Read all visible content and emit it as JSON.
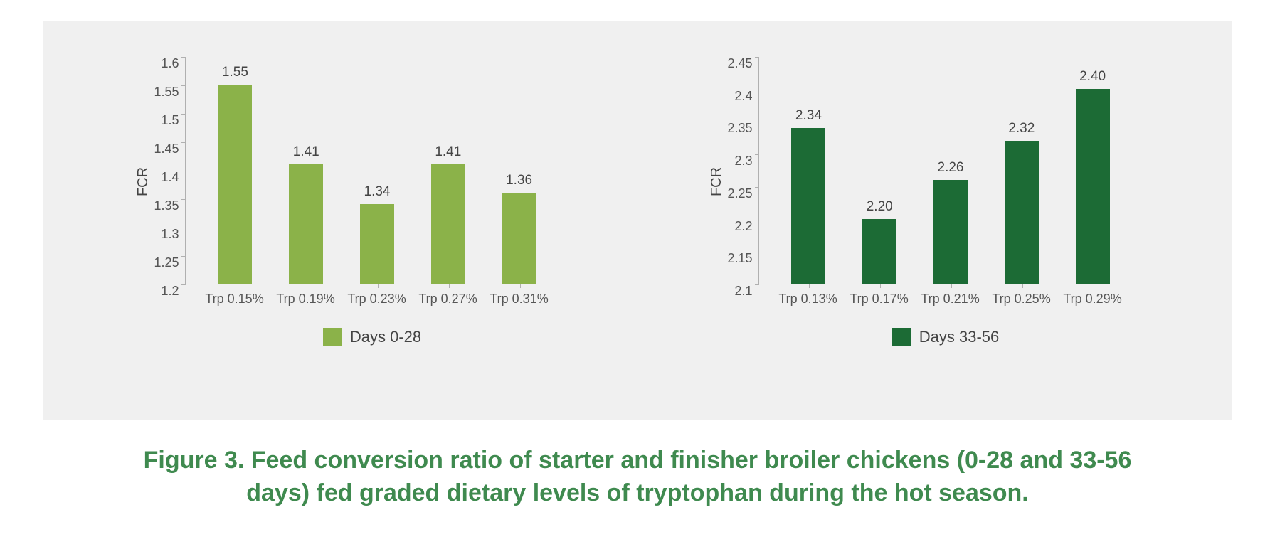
{
  "panel_background": "#f0f0f0",
  "page_background": "#ffffff",
  "axis_color": "#b0b0b0",
  "label_color": "#555555",
  "value_color": "#444444",
  "caption_color": "#3f8a4f",
  "caption": "Figure 3. Feed conversion ratio of starter and finisher broiler chickens (0-28 and 33-56 days) fed graded dietary levels of tryptophan during the hot season.",
  "left_chart": {
    "type": "bar",
    "ylabel": "FCR",
    "ymin": 1.2,
    "ymax": 1.6,
    "yticks": [
      "1.6",
      "1.55",
      "1.5",
      "1.45",
      "1.4",
      "1.35",
      "1.3",
      "1.25",
      "1.2"
    ],
    "categories": [
      "Trp 0.15%",
      "Trp 0.19%",
      "Trp 0.23%",
      "Trp 0.27%",
      "Trp 0.31%"
    ],
    "values": [
      1.55,
      1.41,
      1.34,
      1.41,
      1.36
    ],
    "value_labels": [
      "1.55",
      "1.41",
      "1.34",
      "1.41",
      "1.36"
    ],
    "bar_color": "#8bb249",
    "legend_label": "Days 0-28",
    "legend_swatch_color": "#8bb249"
  },
  "right_chart": {
    "type": "bar",
    "ylabel": "FCR",
    "ymin": 2.1,
    "ymax": 2.45,
    "yticks": [
      "2.45",
      "2.4",
      "2.35",
      "2.3",
      "2.25",
      "2.2",
      "2.15",
      "2.1"
    ],
    "categories": [
      "Trp 0.13%",
      "Trp 0.17%",
      "Trp 0.21%",
      "Trp 0.25%",
      "Trp 0.29%"
    ],
    "values": [
      2.34,
      2.2,
      2.26,
      2.32,
      2.4
    ],
    "value_labels": [
      "2.34",
      "2.20",
      "2.26",
      "2.32",
      "2.40"
    ],
    "bar_color": "#1c6b35",
    "legend_label": "Days 33-56",
    "legend_swatch_color": "#1c6b35"
  }
}
